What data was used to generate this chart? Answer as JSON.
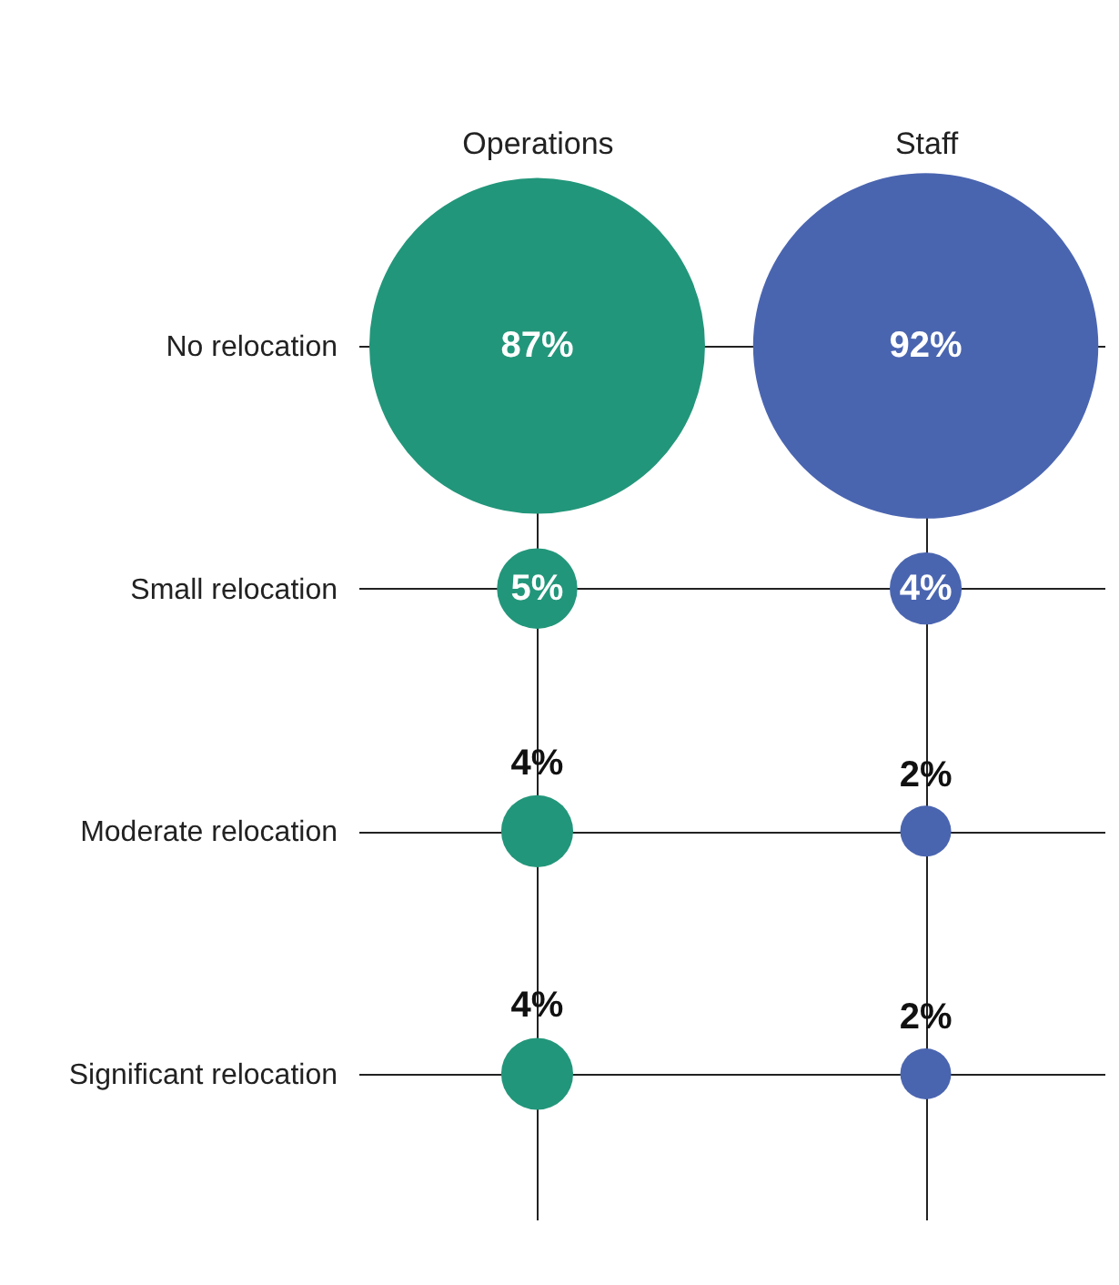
{
  "chart_data": {
    "type": "other",
    "categories": [
      "No relocation",
      "Small relocation",
      "Moderate relocation",
      "Significant relocation"
    ],
    "series": [
      {
        "name": "Operations",
        "color": "#22967a",
        "values": [
          87,
          5,
          4,
          4
        ],
        "value_labels": [
          "87%",
          "5%",
          "4%",
          "4%"
        ]
      },
      {
        "name": "Staff",
        "color": "#4a65b0",
        "values": [
          92,
          4,
          2,
          2
        ],
        "value_labels": [
          "92%",
          "4%",
          "2%",
          "2%"
        ]
      }
    ]
  }
}
